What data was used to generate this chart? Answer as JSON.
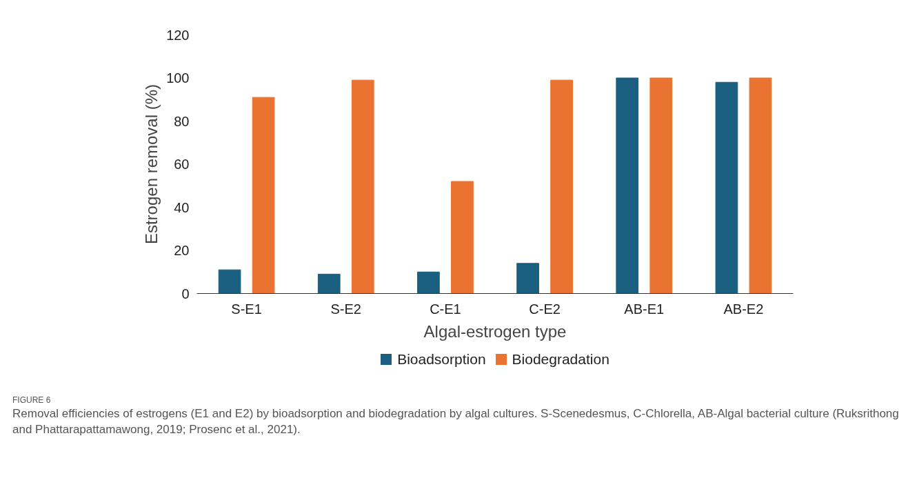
{
  "chart_data": {
    "type": "bar",
    "xlabel": "Algal-estrogen type",
    "ylabel": "Estrogen removal (%)",
    "categories": [
      "S-E1",
      "S-E2",
      "C-E1",
      "C-E2",
      "AB-E1",
      "AB-E2"
    ],
    "series": [
      {
        "name": "Bioadsorption",
        "color": "#1a5f7f",
        "values": [
          11,
          9,
          10,
          14,
          100,
          98
        ]
      },
      {
        "name": "Biodegradation",
        "color": "#ea7331",
        "values": [
          91,
          99,
          52,
          99,
          100,
          100
        ]
      }
    ],
    "ylim": [
      0,
      120
    ],
    "yticks": [
      0,
      20,
      40,
      60,
      80,
      100,
      120
    ],
    "grid": false,
    "legend": "bottom",
    "annotations": [
      "FIGURE 6",
      "Removal efficiencies of estrogens (E1 and E2) by bioadsorption and biodegradation by algal cultures. S-Scenedesmus, C-Chlorella, AB-Algal bacterial culture (Ruksrithong and Phattarapattamawong, 2019; Prosenc et al., 2021)."
    ]
  }
}
